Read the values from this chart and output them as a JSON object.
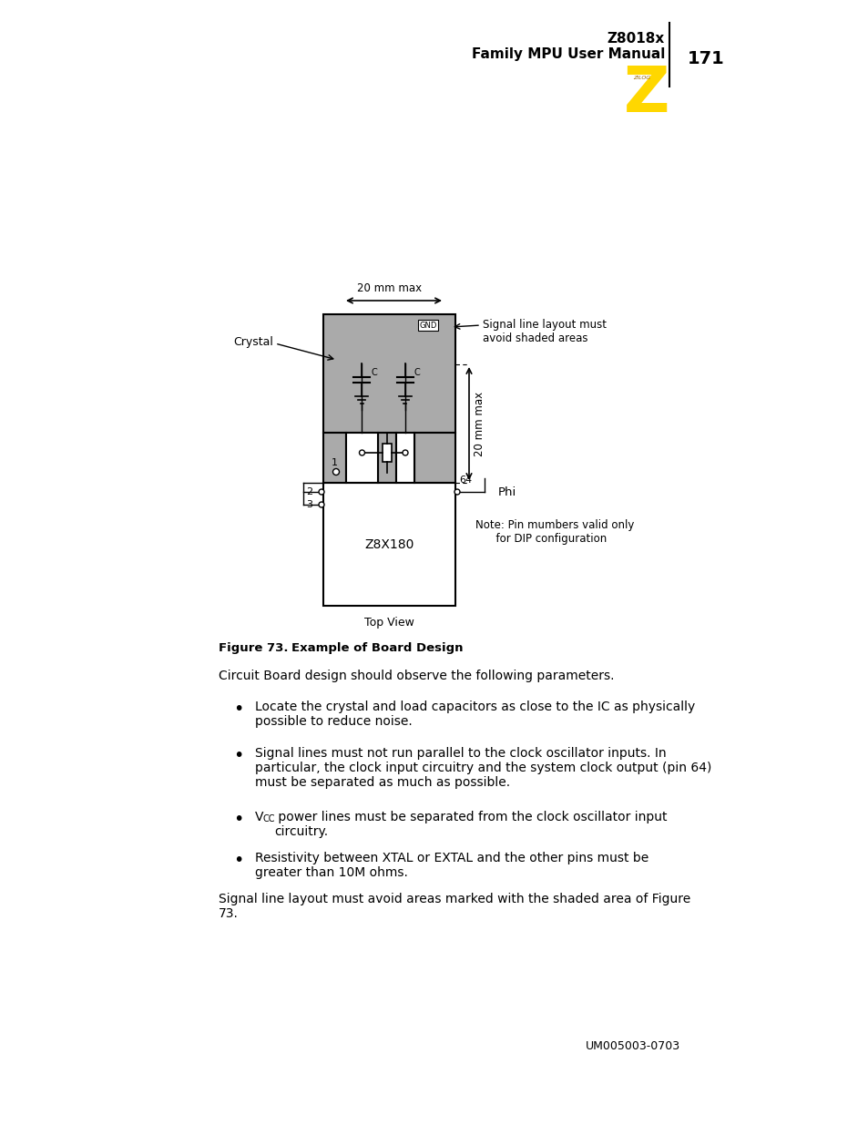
{
  "page_title_line1": "Z8018x",
  "page_title_line2": "Family MPU User Manual",
  "page_number": "171",
  "footer": "UM005003-0703",
  "bg_color": "#ffffff",
  "gray_color": "#aaaaaa",
  "board_color": "#aaaaaa"
}
